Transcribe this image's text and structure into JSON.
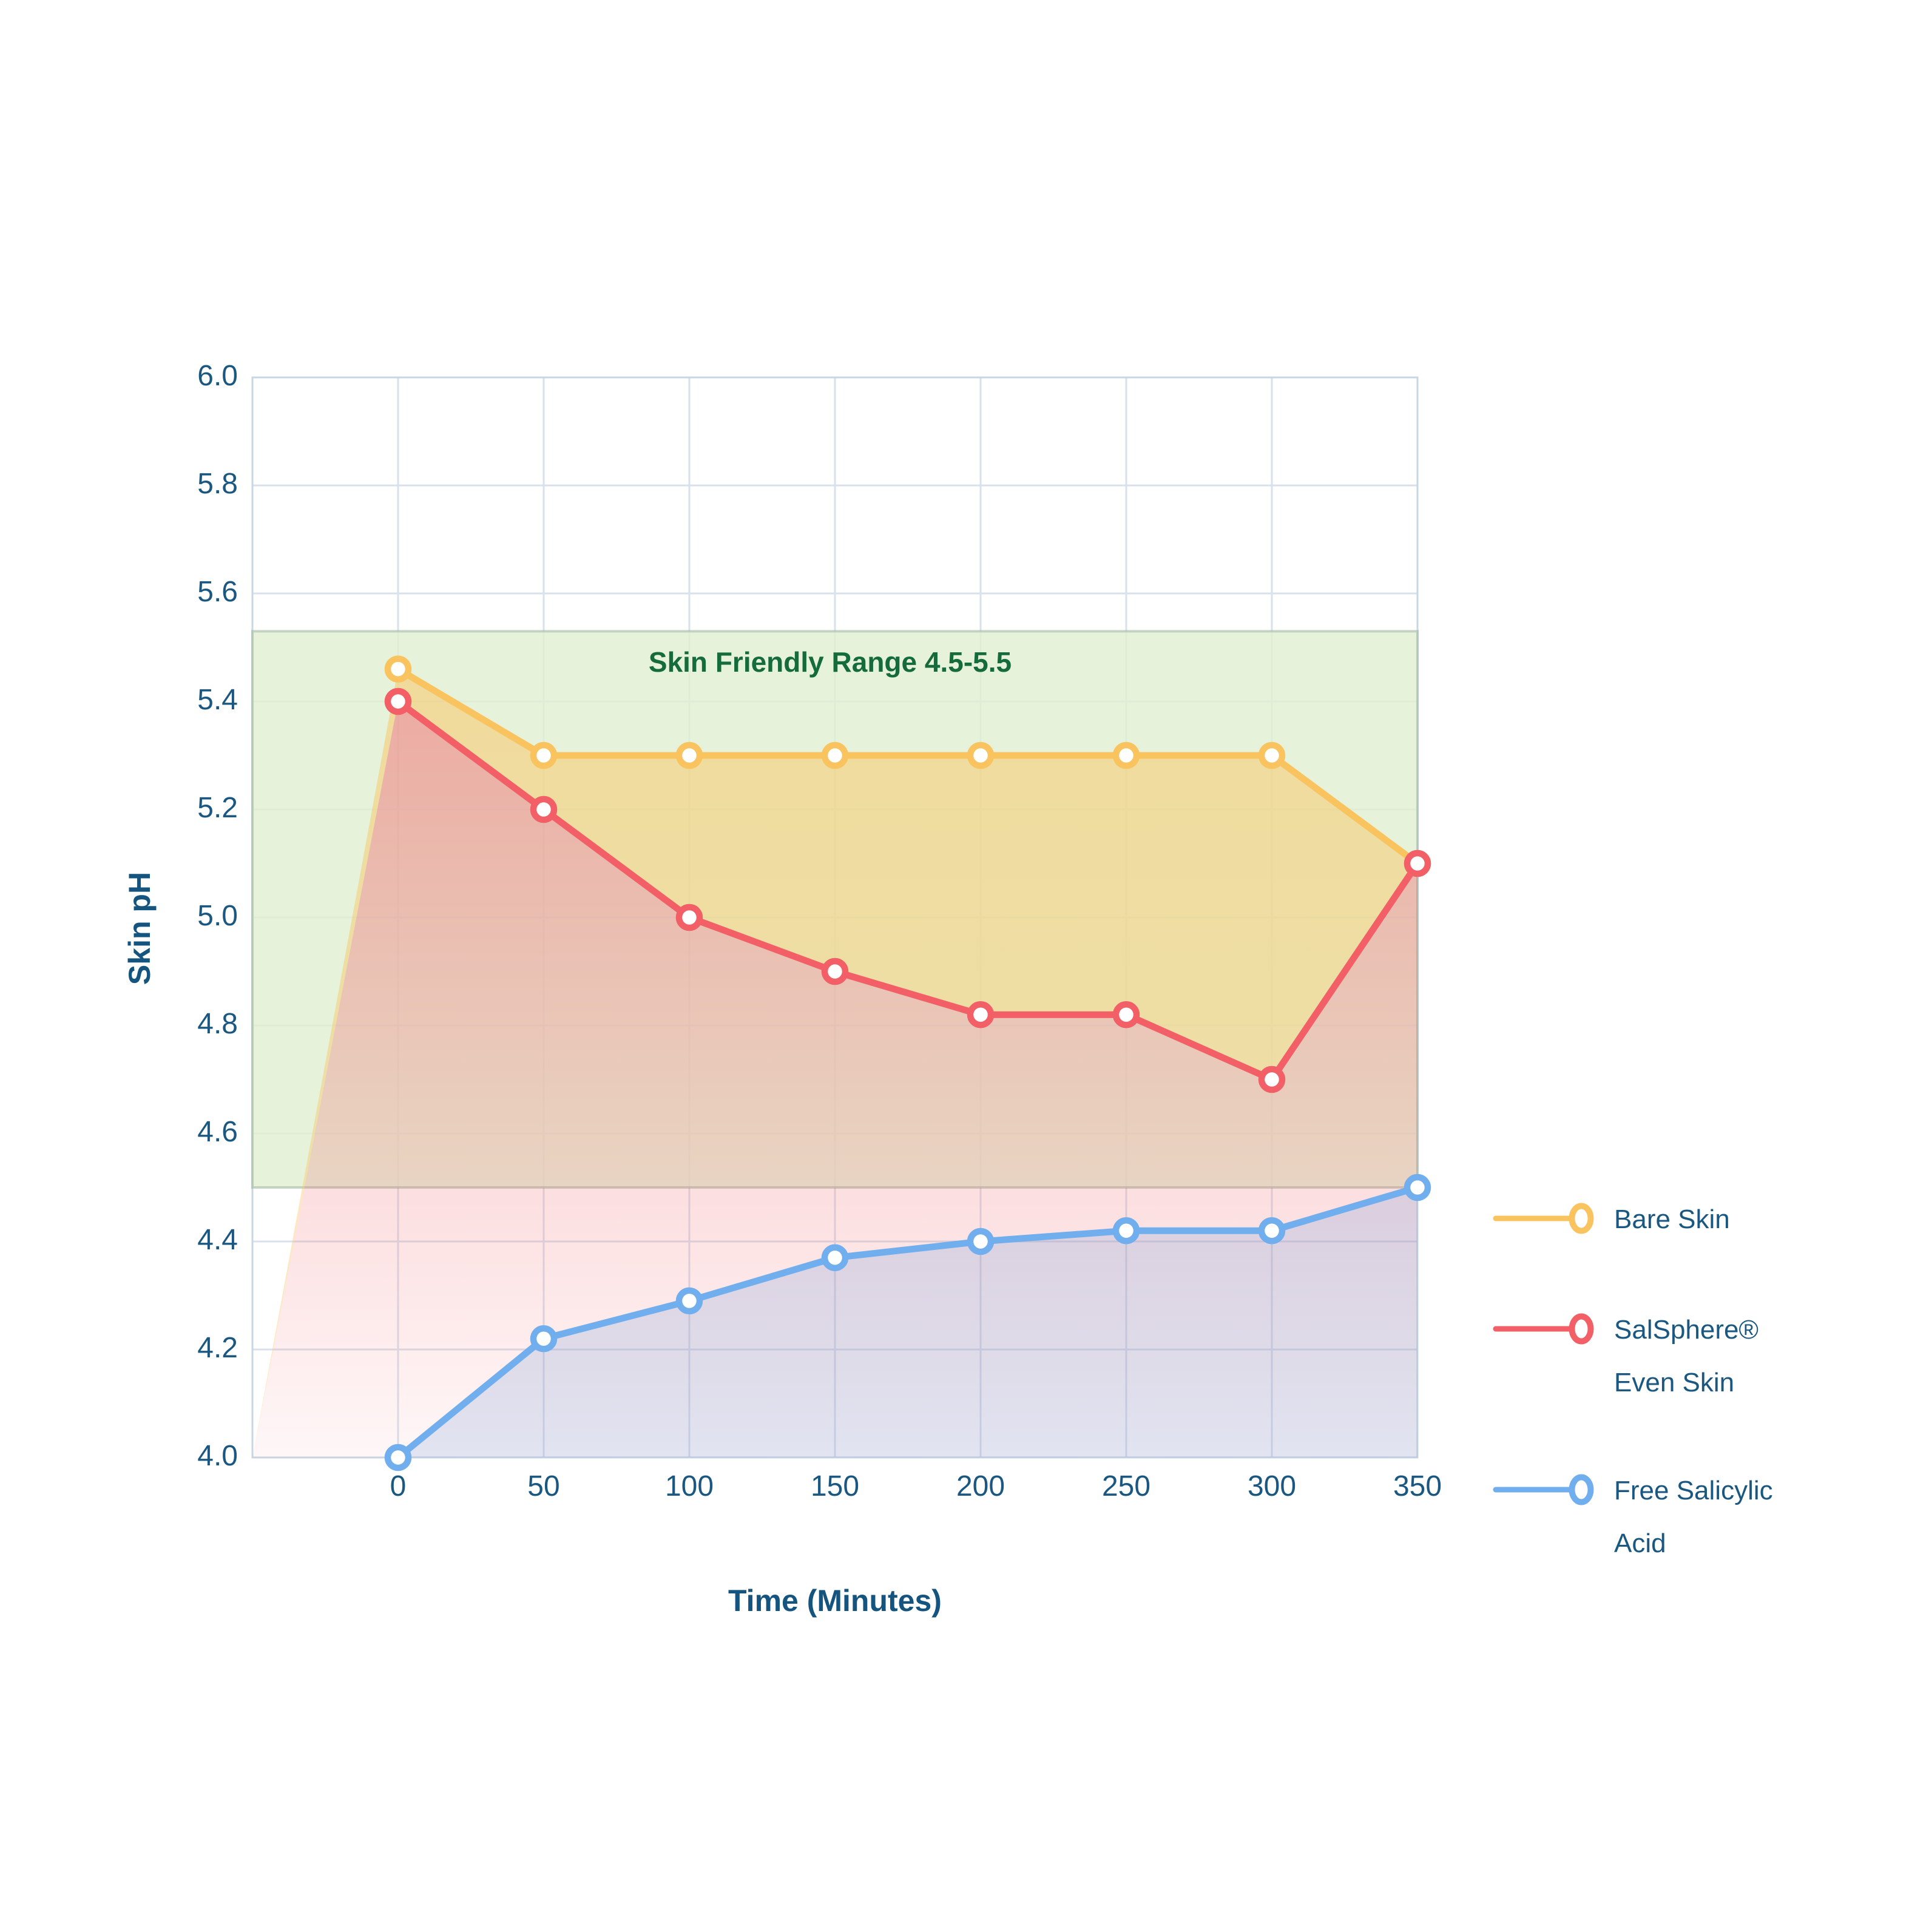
{
  "chart_data": {
    "type": "line",
    "title": "",
    "xlabel": "Time (Minutes)",
    "ylabel": "Skin pH",
    "x": [
      0,
      50,
      100,
      150,
      200,
      250,
      300,
      350
    ],
    "xticks": [
      "0",
      "50",
      "100",
      "150",
      "200",
      "250",
      "300",
      "350"
    ],
    "yticks": [
      "4.0",
      "4.2",
      "4.4",
      "4.6",
      "4.8",
      "5.0",
      "5.2",
      "5.4",
      "5.6",
      "5.8",
      "6.0"
    ],
    "xlim": [
      -50,
      350
    ],
    "ylim": [
      4.0,
      6.0
    ],
    "grid": true,
    "legend_position": "right",
    "series": [
      {
        "name": "Bare Skin",
        "color": "#F9C45F",
        "values": [
          5.46,
          5.3,
          5.3,
          5.3,
          5.3,
          5.3,
          5.3,
          5.1
        ]
      },
      {
        "name": "SalSphere® Even Skin",
        "color": "#F25F66",
        "values": [
          5.4,
          5.2,
          5.0,
          4.9,
          4.82,
          4.82,
          4.7,
          5.1
        ]
      },
      {
        "name": "Free Salicylic Acid",
        "color": "#71AEEE",
        "values": [
          4.0,
          4.22,
          4.29,
          4.37,
          4.4,
          4.42,
          4.42,
          4.5
        ]
      }
    ],
    "band": {
      "label": "Skin Friendly Range 4.5-5.5",
      "from": 4.5,
      "to": 5.5,
      "fill_color": "#E1EFD2",
      "edge_color": "#9CB49E",
      "label_color": "#156B3B"
    },
    "colors": {
      "grid": "#D9E2EC",
      "plot_border": "#C9D6E3",
      "tick_text": "#1A5781",
      "title_text": "#15547F"
    }
  },
  "legend": {
    "items": [
      {
        "label_lines": [
          "Bare Skin"
        ]
      },
      {
        "label_lines": [
          "SalSphere®",
          "Even Skin"
        ]
      },
      {
        "label_lines": [
          "Free Salicylic",
          "Acid"
        ]
      }
    ]
  }
}
